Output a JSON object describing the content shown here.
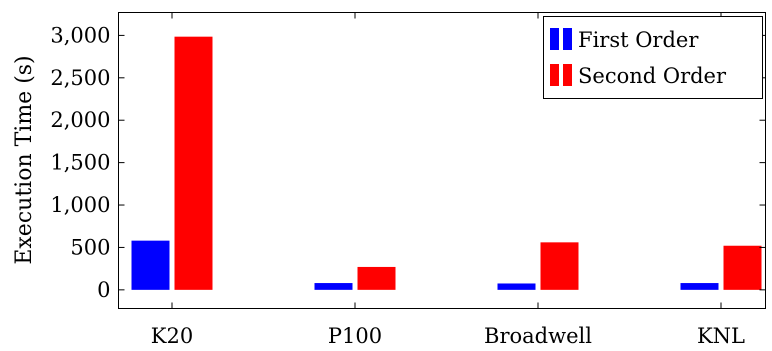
{
  "chart_data": {
    "type": "bar",
    "categories": [
      "K20",
      "P100",
      "Broadwell",
      "KNL"
    ],
    "series": [
      {
        "name": "First Order",
        "color": "#0000ff",
        "values": [
          580,
          80,
          75,
          80
        ]
      },
      {
        "name": "Second Order",
        "color": "#ff0000",
        "values": [
          2985,
          270,
          560,
          520
        ]
      }
    ],
    "ylabel": "Execution Time (s)",
    "xlabel": "",
    "yticks": [
      0,
      500,
      1000,
      1500,
      2000,
      2500,
      3000
    ],
    "ytick_labels": [
      "0",
      "500",
      "1,000",
      "1,500",
      "2,000",
      "2,500",
      "3,000"
    ],
    "ylim": [
      -220,
      3270
    ],
    "grid": false,
    "legend_position": "top-right"
  }
}
